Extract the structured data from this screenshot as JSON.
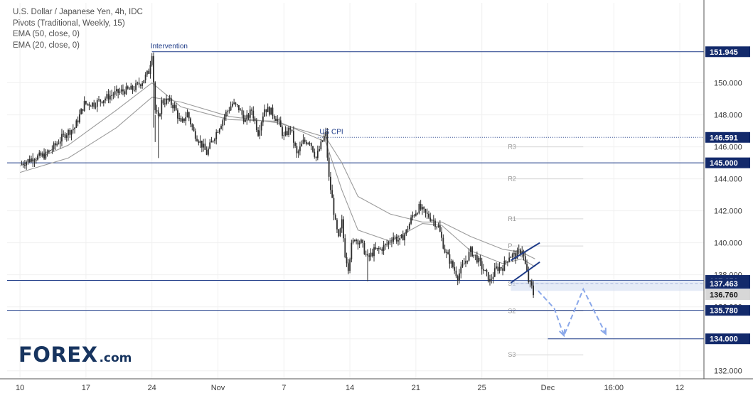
{
  "legend": {
    "line1": "U.S. Dollar / Japanese Yen, 4h, IDC",
    "line2": "Pivots (Traditional, Weekly, 15)",
    "line3": "EMA (50, close, 0)",
    "line4": "EMA (20, close, 0)"
  },
  "logo": {
    "big": "FOREX",
    "small": ".com"
  },
  "colors": {
    "level_line": "#1f3c88",
    "badge_bg": "#132a6b",
    "candle": "#2d2d2d",
    "ema": "#9b9b9b",
    "pivot_line": "#d6d6d6",
    "projection": "#8aa8ea",
    "channel": "#1f3c88"
  },
  "chart_data": {
    "type": "candlestick",
    "title": "",
    "timeframe": "4h",
    "ylim": [
      131.5,
      155.0
    ],
    "y_ticks": [
      {
        "value": 132.0,
        "label": "132.000"
      },
      {
        "value": 134.0,
        "label": "134.000"
      },
      {
        "value": 136.0,
        "label": "136.000"
      },
      {
        "value": 138.0,
        "label": "138.000"
      },
      {
        "value": 140.0,
        "label": "140.000"
      },
      {
        "value": 142.0,
        "label": "142.000"
      },
      {
        "value": 144.0,
        "label": "144.000"
      },
      {
        "value": 146.0,
        "label": "146.000"
      },
      {
        "value": 148.0,
        "label": "148.000"
      },
      {
        "value": 150.0,
        "label": "150.000"
      }
    ],
    "x_ticks": [
      {
        "t": 0,
        "label": "10"
      },
      {
        "t": 41,
        "label": "17"
      },
      {
        "t": 82,
        "label": "24"
      },
      {
        "t": 123,
        "label": "Nov"
      },
      {
        "t": 164,
        "label": "7"
      },
      {
        "t": 205,
        "label": "14"
      },
      {
        "t": 246,
        "label": "21"
      },
      {
        "t": 287,
        "label": "25"
      },
      {
        "t": 328,
        "label": "Dec"
      },
      {
        "t": 369,
        "label": "16:00"
      },
      {
        "t": 410,
        "label": "12"
      }
    ],
    "x_range": [
      -8,
      425
    ],
    "levels": [
      {
        "value": 151.945,
        "label": "151.945",
        "t_start": 82,
        "style": "solid"
      },
      {
        "value": 146.591,
        "label": "146.591",
        "t_start": 185,
        "style": "dotted"
      },
      {
        "value": 145.0,
        "label": "145.000",
        "t_start": -8,
        "style": "solid"
      },
      {
        "value": 137.651,
        "label": "137.651",
        "t_start": -8,
        "style": "solid"
      },
      {
        "value": 137.463,
        "label": "137.463",
        "t_start": 305,
        "style": "dashed"
      },
      {
        "value": 135.78,
        "label": "135.780",
        "t_start": -8,
        "style": "solid"
      },
      {
        "value": 134.0,
        "label": "134.000",
        "t_start": 328,
        "style": "solid"
      }
    ],
    "current_price": {
      "value": 136.76,
      "label": "136.760"
    },
    "pivots": [
      {
        "label": "R3",
        "value": 146.0
      },
      {
        "label": "R2",
        "value": 144.0
      },
      {
        "label": "R1",
        "value": 141.5
      },
      {
        "label": "P",
        "value": 139.8
      },
      {
        "label": "S1",
        "value": 137.45
      },
      {
        "label": "S2",
        "value": 135.75
      },
      {
        "label": "S3",
        "value": 133.0
      }
    ],
    "pivot_t_range": [
      305,
      350
    ],
    "annotations": [
      {
        "text": "Intervention",
        "t": 82,
        "value": 151.945
      },
      {
        "text": "US CPI",
        "t": 187,
        "value": 146.591
      }
    ],
    "path_points": [
      [
        0,
        144.9
      ],
      [
        8,
        145.3
      ],
      [
        16,
        145.5
      ],
      [
        22,
        146.1
      ],
      [
        28,
        146.8
      ],
      [
        34,
        147.2
      ],
      [
        40,
        148.7
      ],
      [
        46,
        148.7
      ],
      [
        52,
        149.0
      ],
      [
        58,
        149.3
      ],
      [
        64,
        149.5
      ],
      [
        70,
        149.6
      ],
      [
        76,
        150.1
      ],
      [
        80,
        150.7
      ],
      [
        82,
        151.9
      ],
      [
        84,
        148.3
      ],
      [
        86,
        147.7
      ],
      [
        88,
        148.8
      ],
      [
        92,
        148.9
      ],
      [
        96,
        148.5
      ],
      [
        100,
        147.4
      ],
      [
        104,
        148.1
      ],
      [
        108,
        146.9
      ],
      [
        112,
        146.3
      ],
      [
        116,
        145.6
      ],
      [
        120,
        146.5
      ],
      [
        124,
        147.3
      ],
      [
        128,
        148.1
      ],
      [
        132,
        148.7
      ],
      [
        136,
        148.4
      ],
      [
        140,
        147.6
      ],
      [
        144,
        148.3
      ],
      [
        148,
        146.9
      ],
      [
        152,
        148.4
      ],
      [
        156,
        148.2
      ],
      [
        160,
        147.7
      ],
      [
        164,
        146.6
      ],
      [
        168,
        147.2
      ],
      [
        172,
        145.5
      ],
      [
        176,
        146.3
      ],
      [
        180,
        146.4
      ],
      [
        184,
        145.3
      ],
      [
        188,
        146.4
      ],
      [
        190,
        146.8
      ],
      [
        192,
        144.0
      ],
      [
        194,
        142.7
      ],
      [
        196,
        141.2
      ],
      [
        198,
        140.2
      ],
      [
        200,
        141.3
      ],
      [
        202,
        139.3
      ],
      [
        204,
        138.5
      ],
      [
        206,
        139.8
      ],
      [
        208,
        140.3
      ],
      [
        212,
        140.0
      ],
      [
        216,
        139.0
      ],
      [
        220,
        139.5
      ],
      [
        224,
        139.6
      ],
      [
        228,
        139.9
      ],
      [
        232,
        140.4
      ],
      [
        236,
        140.1
      ],
      [
        240,
        140.7
      ],
      [
        244,
        141.7
      ],
      [
        248,
        142.2
      ],
      [
        252,
        141.8
      ],
      [
        256,
        141.5
      ],
      [
        260,
        141.0
      ],
      [
        264,
        139.5
      ],
      [
        268,
        138.7
      ],
      [
        272,
        137.9
      ],
      [
        276,
        138.7
      ],
      [
        280,
        139.5
      ],
      [
        284,
        139.0
      ],
      [
        288,
        138.3
      ],
      [
        292,
        137.6
      ],
      [
        296,
        138.4
      ],
      [
        300,
        138.5
      ],
      [
        304,
        139.2
      ],
      [
        308,
        139.2
      ],
      [
        312,
        139.6
      ],
      [
        314,
        138.6
      ],
      [
        316,
        137.6
      ],
      [
        318,
        137.2
      ],
      [
        319,
        136.8
      ]
    ],
    "ema20_points": [
      [
        0,
        144.8
      ],
      [
        30,
        146.1
      ],
      [
        60,
        148.3
      ],
      [
        82,
        150.0
      ],
      [
        100,
        148.5
      ],
      [
        130,
        147.7
      ],
      [
        160,
        147.6
      ],
      [
        190,
        146.3
      ],
      [
        200,
        143.3
      ],
      [
        210,
        140.8
      ],
      [
        230,
        140.1
      ],
      [
        250,
        141.2
      ],
      [
        262,
        141.1
      ],
      [
        280,
        139.5
      ],
      [
        300,
        138.7
      ],
      [
        312,
        139.0
      ],
      [
        320,
        138.5
      ]
    ],
    "ema50_points": [
      [
        0,
        144.4
      ],
      [
        30,
        145.3
      ],
      [
        60,
        147.2
      ],
      [
        82,
        149.1
      ],
      [
        100,
        148.8
      ],
      [
        130,
        147.9
      ],
      [
        160,
        147.5
      ],
      [
        190,
        146.6
      ],
      [
        200,
        145.0
      ],
      [
        210,
        142.9
      ],
      [
        230,
        141.8
      ],
      [
        250,
        141.3
      ],
      [
        262,
        141.3
      ],
      [
        280,
        140.4
      ],
      [
        300,
        139.6
      ],
      [
        312,
        139.4
      ],
      [
        320,
        139.0
      ]
    ],
    "channel": {
      "upper": [
        [
          305,
          138.9
        ],
        [
          323,
          140.0
        ]
      ],
      "lower": [
        [
          305,
          137.5
        ],
        [
          323,
          138.8
        ]
      ]
    },
    "projection": [
      [
        322,
        137.0
      ],
      [
        332,
        135.9
      ],
      [
        338,
        134.2
      ],
      [
        350,
        137.1
      ],
      [
        364,
        134.3
      ]
    ]
  }
}
